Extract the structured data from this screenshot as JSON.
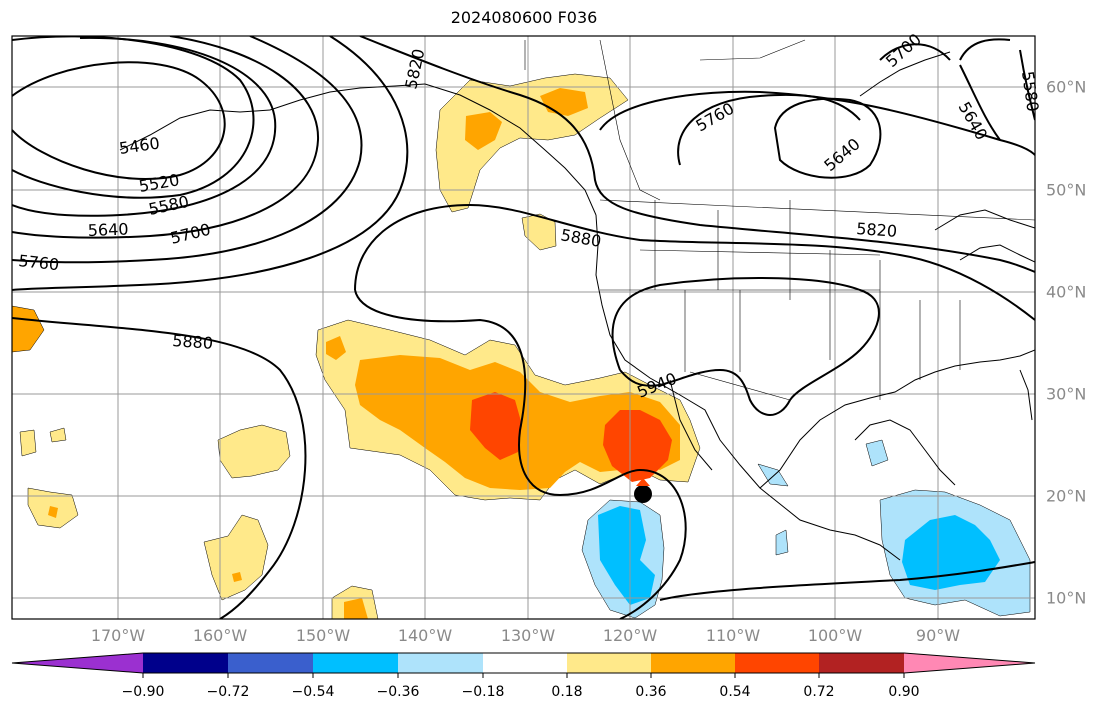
{
  "title": "2024080600 F036",
  "lat_labels": [
    "60°N",
    "50°N",
    "40°N",
    "30°N",
    "20°N",
    "10°N"
  ],
  "lon_labels": [
    "170°W",
    "160°W",
    "150°W",
    "140°W",
    "130°W",
    "120°W",
    "110°W",
    "100°W",
    "90°W"
  ],
  "colorbar": {
    "ticks": [
      "−0.90",
      "−0.72",
      "−0.54",
      "−0.36",
      "−0.18",
      "0.18",
      "0.36",
      "0.54",
      "0.72",
      "0.90"
    ],
    "colors": [
      "#9b30d0",
      "#00008b",
      "#3a5fcd",
      "#00bfff",
      "#aee3fb",
      "#ffffff",
      "#ffe98a",
      "#ffa500",
      "#ff4500",
      "#b22222",
      "#ff88b4"
    ]
  },
  "contour_labels": [
    "5460",
    "5520",
    "5580",
    "5640",
    "5700",
    "5760",
    "5880",
    "5820",
    "5880",
    "5940",
    "5760",
    "5640",
    "5700",
    "5820",
    "5640",
    "5580"
  ],
  "marker": "storm-position-dot"
}
